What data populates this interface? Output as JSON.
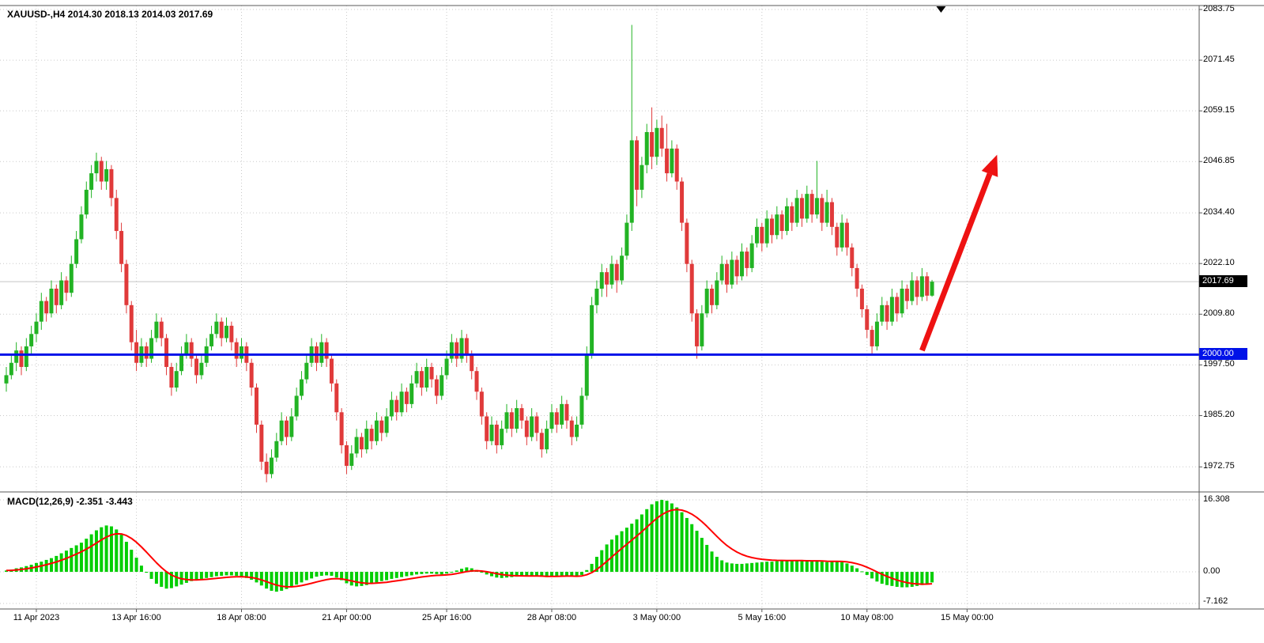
{
  "window": {
    "header": "XAUUSD-,H4 2014.30 2018.13 2014.03 2017.69"
  },
  "colors": {
    "bull": "#22B324",
    "bear": "#E03A3A",
    "macd_histogram": "#00CE00",
    "macd_signal": "#FF0000",
    "support_line": "#0012E8",
    "arrow": "#EE1212",
    "grid": "#c9c9c9",
    "frame": "#5a5a5a",
    "current_price_line": "#c4c4c4",
    "current_price_badge_bg": "#000000",
    "support_badge_bg": "#0012E8"
  },
  "chart_data": {
    "type": "candlestick",
    "symbol": "XAUUSD-",
    "timeframe": "H4",
    "ohlc_header": {
      "open": "2014.30",
      "high": "2018.13",
      "low": "2014.03",
      "close": "2017.69"
    },
    "current_price_label": "2017.69",
    "current_price": 2017.69,
    "support_line": {
      "price": 2000.0,
      "label": "2000.00"
    },
    "price_axis": [
      2083.75,
      2071.45,
      2059.15,
      2046.85,
      2034.4,
      2022.1,
      2009.8,
      1997.5,
      1985.2,
      1972.75
    ],
    "time_axis": [
      {
        "label": "11 Apr 2023",
        "index": 6
      },
      {
        "label": "13 Apr 16:00",
        "index": 26
      },
      {
        "label": "18 Apr 08:00",
        "index": 47
      },
      {
        "label": "21 Apr 00:00",
        "index": 68
      },
      {
        "label": "25 Apr 16:00",
        "index": 88
      },
      {
        "label": "28 Apr 08:00",
        "index": 109
      },
      {
        "label": "3 May 00:00",
        "index": 130
      },
      {
        "label": "5 May 16:00",
        "index": 151
      },
      {
        "label": "10 May 08:00",
        "index": 172
      },
      {
        "label": "15 May 00:00",
        "index": 192
      }
    ],
    "shift_marker_index": 186.8,
    "arrow": {
      "from_index": 183,
      "from_price": 2001,
      "to_index": 198,
      "to_price": 2048.5
    },
    "candles": [
      [
        1993,
        1997,
        1991,
        1995
      ],
      [
        1995,
        2000,
        1994,
        1998
      ],
      [
        1998,
        2003,
        1996,
        2001
      ],
      [
        2001,
        2002,
        1995,
        1997
      ],
      [
        1997,
        2004,
        1996,
        2002
      ],
      [
        2002,
        2007,
        2000,
        2005
      ],
      [
        2005,
        2010,
        2003,
        2008
      ],
      [
        2008,
        2015,
        2006,
        2013
      ],
      [
        2013,
        2014,
        2008,
        2010
      ],
      [
        2010,
        2018,
        2009,
        2016
      ],
      [
        2016,
        2017,
        2010,
        2012
      ],
      [
        2012,
        2020,
        2011,
        2018
      ],
      [
        2018,
        2019,
        2013,
        2015
      ],
      [
        2015,
        2024,
        2014,
        2022
      ],
      [
        2022,
        2030,
        2021,
        2028
      ],
      [
        2028,
        2036,
        2027,
        2034
      ],
      [
        2034,
        2042,
        2033,
        2040
      ],
      [
        2040,
        2046,
        2038,
        2044
      ],
      [
        2044,
        2049,
        2042,
        2047
      ],
      [
        2047,
        2048,
        2040,
        2042
      ],
      [
        2042,
        2047,
        2040,
        2045
      ],
      [
        2045,
        2046,
        2036,
        2038
      ],
      [
        2038,
        2040,
        2028,
        2030
      ],
      [
        2030,
        2032,
        2020,
        2022
      ],
      [
        2022,
        2023,
        2010,
        2012
      ],
      [
        2012,
        2013,
        2001,
        2003
      ],
      [
        2003,
        2006,
        1996,
        1998
      ],
      [
        1998,
        2004,
        1997,
        2002
      ],
      [
        2002,
        2003,
        1997,
        1999
      ],
      [
        1999,
        2006,
        1998,
        2004
      ],
      [
        2004,
        2010,
        2003,
        2008
      ],
      [
        2008,
        2009,
        2002,
        2004
      ],
      [
        2004,
        2005,
        1995,
        1997
      ],
      [
        1997,
        1998,
        1990,
        1992
      ],
      [
        1992,
        1998,
        1991,
        1996
      ],
      [
        1996,
        2002,
        1995,
        2000
      ],
      [
        2000,
        2005,
        1999,
        2003
      ],
      [
        2003,
        2004,
        1997,
        1999
      ],
      [
        1999,
        2000,
        1993,
        1995
      ],
      [
        1995,
        2000,
        1994,
        1998
      ],
      [
        1998,
        2004,
        1997,
        2002
      ],
      [
        2002,
        2007,
        2001,
        2005
      ],
      [
        2005,
        2010,
        2004,
        2008
      ],
      [
        2008,
        2009,
        2002,
        2004
      ],
      [
        2004,
        2009,
        2003,
        2007
      ],
      [
        2007,
        2008,
        2001,
        2003
      ],
      [
        2003,
        2004,
        1997,
        1999
      ],
      [
        1999,
        2004,
        1998,
        2002
      ],
      [
        2002,
        2003,
        1996,
        1998
      ],
      [
        1998,
        1999,
        1990,
        1992
      ],
      [
        1992,
        1993,
        1981,
        1983
      ],
      [
        1983,
        1984,
        1972,
        1974
      ],
      [
        1974,
        1976,
        1969,
        1971
      ],
      [
        1971,
        1977,
        1970,
        1975
      ],
      [
        1975,
        1981,
        1974,
        1979
      ],
      [
        1979,
        1986,
        1978,
        1984
      ],
      [
        1984,
        1985,
        1978,
        1980
      ],
      [
        1980,
        1987,
        1979,
        1985
      ],
      [
        1985,
        1992,
        1984,
        1990
      ],
      [
        1990,
        1996,
        1989,
        1994
      ],
      [
        1994,
        2000,
        1993,
        1998
      ],
      [
        1998,
        2004,
        1997,
        2002
      ],
      [
        2002,
        2003,
        1996,
        1998
      ],
      [
        1998,
        2005,
        1997,
        2003
      ],
      [
        2003,
        2004,
        1997,
        1999
      ],
      [
        1999,
        2000,
        1991,
        1993
      ],
      [
        1993,
        1994,
        1984,
        1986
      ],
      [
        1986,
        1987,
        1976,
        1978
      ],
      [
        1978,
        1979,
        1971,
        1973
      ],
      [
        1973,
        1978,
        1972,
        1976
      ],
      [
        1976,
        1982,
        1975,
        1980
      ],
      [
        1980,
        1981,
        1975,
        1977
      ],
      [
        1977,
        1984,
        1976,
        1982
      ],
      [
        1982,
        1983,
        1977,
        1979
      ],
      [
        1979,
        1986,
        1978,
        1984
      ],
      [
        1984,
        1985,
        1979,
        1981
      ],
      [
        1981,
        1987,
        1980,
        1985
      ],
      [
        1985,
        1991,
        1984,
        1989
      ],
      [
        1989,
        1990,
        1984,
        1986
      ],
      [
        1986,
        1993,
        1985,
        1991
      ],
      [
        1991,
        1992,
        1986,
        1988
      ],
      [
        1988,
        1995,
        1987,
        1993
      ],
      [
        1993,
        1998,
        1992,
        1996
      ],
      [
        1996,
        1997,
        1990,
        1992
      ],
      [
        1992,
        1999,
        1991,
        1997
      ],
      [
        1997,
        1998,
        1992,
        1994
      ],
      [
        1994,
        1995,
        1988,
        1990
      ],
      [
        1990,
        1997,
        1989,
        1995
      ],
      [
        1995,
        2001,
        1994,
        1999
      ],
      [
        1999,
        2005,
        1998,
        2003
      ],
      [
        2003,
        2004,
        1997,
        1999
      ],
      [
        1999,
        2006,
        1998,
        2004
      ],
      [
        2004,
        2005,
        1998,
        2000
      ],
      [
        2000,
        2001,
        1994,
        1996
      ],
      [
        1996,
        1997,
        1989,
        1991
      ],
      [
        1991,
        1992,
        1983,
        1985
      ],
      [
        1985,
        1986,
        1977,
        1979
      ],
      [
        1979,
        1985,
        1978,
        1983
      ],
      [
        1983,
        1984,
        1976,
        1978
      ],
      [
        1978,
        1984,
        1977,
        1982
      ],
      [
        1982,
        1988,
        1981,
        1986
      ],
      [
        1986,
        1987,
        1980,
        1982
      ],
      [
        1982,
        1989,
        1981,
        1987
      ],
      [
        1987,
        1988,
        1982,
        1984
      ],
      [
        1984,
        1985,
        1978,
        1980
      ],
      [
        1980,
        1987,
        1979,
        1985
      ],
      [
        1985,
        1986,
        1979,
        1981
      ],
      [
        1981,
        1982,
        1975,
        1977
      ],
      [
        1977,
        1984,
        1976,
        1982
      ],
      [
        1982,
        1988,
        1981,
        1986
      ],
      [
        1986,
        1987,
        1981,
        1983
      ],
      [
        1983,
        1990,
        1982,
        1988
      ],
      [
        1988,
        1989,
        1982,
        1984
      ],
      [
        1984,
        1985,
        1978,
        1980
      ],
      [
        1980,
        1985,
        1979,
        1983
      ],
      [
        1983,
        1992,
        1982,
        1990
      ],
      [
        1990,
        2002,
        1989,
        2000
      ],
      [
        2000,
        2014,
        1999,
        2012
      ],
      [
        2012,
        2018,
        2010,
        2016
      ],
      [
        2016,
        2022,
        2014,
        2020
      ],
      [
        2020,
        2021,
        2014,
        2017
      ],
      [
        2017,
        2024,
        2016,
        2022
      ],
      [
        2022,
        2023,
        2015,
        2018
      ],
      [
        2018,
        2026,
        2017,
        2024
      ],
      [
        2024,
        2034,
        2023,
        2032
      ],
      [
        2032,
        2080,
        2030,
        2052
      ],
      [
        2052,
        2053,
        2036,
        2040
      ],
      [
        2040,
        2048,
        2038,
        2046
      ],
      [
        2046,
        2056,
        2044,
        2054
      ],
      [
        2054,
        2060,
        2045,
        2048
      ],
      [
        2048,
        2057,
        2046,
        2055
      ],
      [
        2055,
        2058,
        2048,
        2050
      ],
      [
        2050,
        2056,
        2042,
        2044
      ],
      [
        2044,
        2052,
        2043,
        2050
      ],
      [
        2050,
        2051,
        2040,
        2042
      ],
      [
        2042,
        2043,
        2030,
        2032
      ],
      [
        2032,
        2033,
        2020,
        2022
      ],
      [
        2022,
        2023,
        2008,
        2010
      ],
      [
        2010,
        2011,
        1999,
        2002
      ],
      [
        2002,
        2012,
        2001,
        2010
      ],
      [
        2010,
        2018,
        2009,
        2016
      ],
      [
        2016,
        2017,
        2010,
        2012
      ],
      [
        2012,
        2020,
        2011,
        2018
      ],
      [
        2018,
        2024,
        2017,
        2022
      ],
      [
        2022,
        2023,
        2015,
        2017
      ],
      [
        2017,
        2025,
        2016,
        2023
      ],
      [
        2023,
        2024,
        2017,
        2019
      ],
      [
        2019,
        2027,
        2018,
        2025
      ],
      [
        2025,
        2026,
        2019,
        2021
      ],
      [
        2021,
        2029,
        2020,
        2027
      ],
      [
        2027,
        2033,
        2026,
        2031
      ],
      [
        2031,
        2032,
        2025,
        2027
      ],
      [
        2027,
        2035,
        2026,
        2033
      ],
      [
        2033,
        2034,
        2027,
        2029
      ],
      [
        2029,
        2036,
        2028,
        2034
      ],
      [
        2034,
        2035,
        2028,
        2030
      ],
      [
        2030,
        2038,
        2029,
        2036
      ],
      [
        2036,
        2037,
        2030,
        2032
      ],
      [
        2032,
        2040,
        2031,
        2038
      ],
      [
        2038,
        2039,
        2031,
        2033
      ],
      [
        2033,
        2041,
        2032,
        2039
      ],
      [
        2039,
        2040,
        2032,
        2034
      ],
      [
        2034,
        2047,
        2033,
        2038
      ],
      [
        2038,
        2039,
        2030,
        2032
      ],
      [
        2032,
        2040,
        2031,
        2037
      ],
      [
        2037,
        2038,
        2029,
        2031
      ],
      [
        2031,
        2032,
        2024,
        2026
      ],
      [
        2026,
        2034,
        2025,
        2032
      ],
      [
        2032,
        2033,
        2024,
        2026
      ],
      [
        2026,
        2027,
        2019,
        2021
      ],
      [
        2021,
        2022,
        2014,
        2016
      ],
      [
        2016,
        2017,
        2009,
        2011
      ],
      [
        2011,
        2012,
        2004,
        2006
      ],
      [
        2006,
        2007,
        2000,
        2002
      ],
      [
        2002,
        2010,
        2001,
        2008
      ],
      [
        2008,
        2014,
        2007,
        2012
      ],
      [
        2012,
        2013,
        2006,
        2008
      ],
      [
        2008,
        2016,
        2007,
        2014
      ],
      [
        2014,
        2015,
        2008,
        2010
      ],
      [
        2010,
        2018,
        2009,
        2016
      ],
      [
        2016,
        2017,
        2011,
        2013
      ],
      [
        2013,
        2020,
        2012,
        2018
      ],
      [
        2018,
        2019,
        2012,
        2014
      ],
      [
        2014,
        2021,
        2013,
        2019
      ],
      [
        2019,
        2020,
        2013,
        2014.3
      ],
      [
        2014.3,
        2018.13,
        2014.03,
        2017.69
      ]
    ],
    "macd": {
      "header": "MACD(12,26,9) -2.351 -3.443",
      "params": "12,26,9",
      "value": -2.351,
      "signal_value": -3.443,
      "signal_period": 9,
      "axis": [
        16.308,
        0,
        -7.162
      ],
      "histogram": [
        0.3,
        0.5,
        0.8,
        1.0,
        1.3,
        1.6,
        2.0,
        2.3,
        2.7,
        3.1,
        3.6,
        4.2,
        4.8,
        5.4,
        6.0,
        6.6,
        7.5,
        8.5,
        9.4,
        10.1,
        10.5,
        10.3,
        9.6,
        8.4,
        6.8,
        5.0,
        3.2,
        1.4,
        -0.2,
        -1.6,
        -2.7,
        -3.4,
        -3.8,
        -3.7,
        -3.3,
        -2.9,
        -2.5,
        -2.1,
        -1.8,
        -1.6,
        -1.4,
        -1.2,
        -1.0,
        -0.9,
        -0.8,
        -0.8,
        -0.9,
        -1.1,
        -1.4,
        -1.8,
        -2.4,
        -3.1,
        -3.8,
        -4.3,
        -4.5,
        -4.3,
        -3.9,
        -3.4,
        -2.9,
        -2.4,
        -1.9,
        -1.5,
        -1.1,
        -0.9,
        -0.8,
        -0.9,
        -1.3,
        -1.9,
        -2.6,
        -3.1,
        -3.3,
        -3.2,
        -3.0,
        -2.7,
        -2.4,
        -2.1,
        -1.9,
        -1.6,
        -1.4,
        -1.2,
        -1.0,
        -0.8,
        -0.6,
        -0.5,
        -0.4,
        -0.4,
        -0.5,
        -0.6,
        -0.4,
        -0.1,
        0.3,
        0.7,
        1.0,
        0.8,
        0.4,
        -0.1,
        -0.6,
        -1.0,
        -1.3,
        -1.4,
        -1.3,
        -1.2,
        -1.1,
        -1.0,
        -1.0,
        -0.9,
        -1.0,
        -1.1,
        -1.2,
        -1.1,
        -1.0,
        -0.8,
        -0.9,
        -1.0,
        -1.1,
        -0.7,
        0.4,
        1.8,
        3.4,
        4.9,
        6.2,
        7.3,
        8.3,
        9.2,
        10.0,
        10.9,
        11.9,
        13.0,
        14.2,
        15.3,
        16.0,
        16.3,
        16.1,
        15.5,
        14.6,
        13.5,
        12.2,
        10.8,
        9.3,
        7.7,
        6.1,
        4.6,
        3.4,
        2.6,
        2.1,
        1.9,
        1.8,
        1.8,
        1.9,
        2.0,
        2.1,
        2.2,
        2.3,
        2.3,
        2.4,
        2.5,
        2.5,
        2.6,
        2.5,
        2.5,
        2.4,
        2.4,
        2.5,
        2.3,
        2.2,
        2.3,
        2.4,
        2.2,
        1.9,
        1.4,
        0.8,
        0.1,
        -0.7,
        -1.5,
        -2.2,
        -2.7,
        -3.0,
        -3.2,
        -3.4,
        -3.5,
        -3.5,
        -3.4,
        -3.2,
        -3.0,
        -2.7,
        -2.4
      ]
    }
  }
}
